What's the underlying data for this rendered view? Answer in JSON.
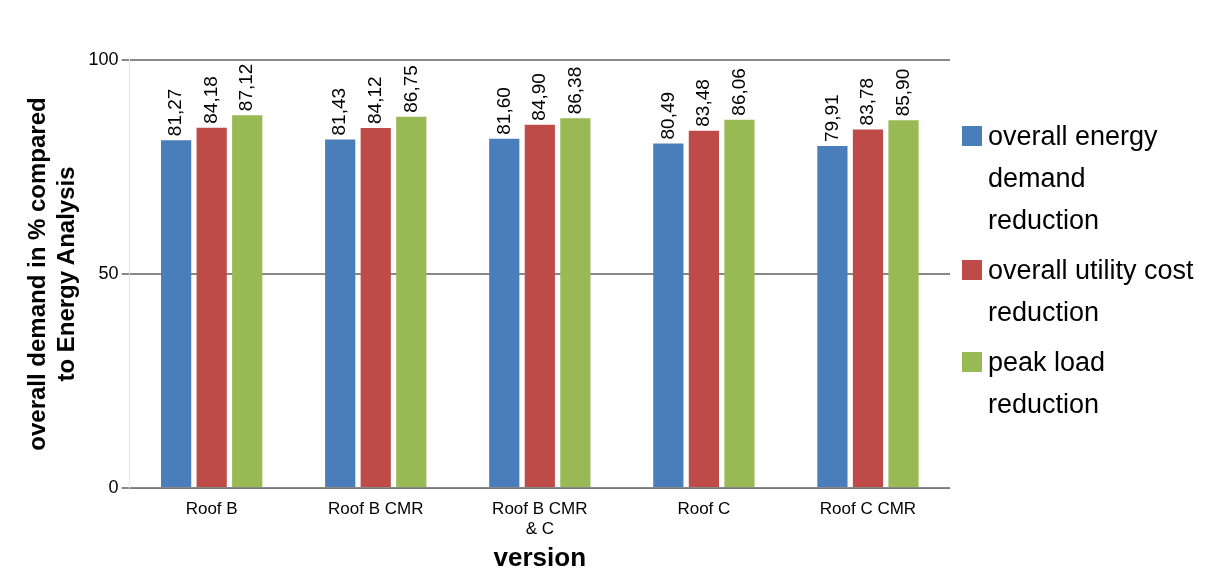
{
  "chart_data": {
    "type": "bar",
    "categories": [
      "Roof B",
      "Roof B CMR",
      "Roof B CMR & C",
      "Roof C",
      "Roof C CMR"
    ],
    "xlabel": "version",
    "ylabel": "overall demand in % compared to Energy Analysis",
    "ylim": [
      0,
      100
    ],
    "yticks": [
      0,
      50,
      100
    ],
    "grid": "y",
    "legend": "right",
    "series": [
      {
        "name": "overall energy demand reduction",
        "color": "#4a7ebb",
        "values": [
          81.27,
          81.43,
          81.6,
          80.49,
          79.91
        ],
        "value_labels": [
          "81,27",
          "81,43",
          "81,60",
          "80,49",
          "79,91"
        ]
      },
      {
        "name": "overall utility cost reduction",
        "color": "#be4b48",
        "values": [
          84.18,
          84.12,
          84.9,
          83.48,
          83.78
        ],
        "value_labels": [
          "84,18",
          "84,12",
          "84,90",
          "83,48",
          "83,78"
        ]
      },
      {
        "name": "peak load reduction",
        "color": "#98b954",
        "values": [
          87.12,
          86.75,
          86.38,
          86.06,
          85.9
        ],
        "value_labels": [
          "87,12",
          "86,75",
          "86,38",
          "86,06",
          "85,90"
        ]
      }
    ]
  }
}
